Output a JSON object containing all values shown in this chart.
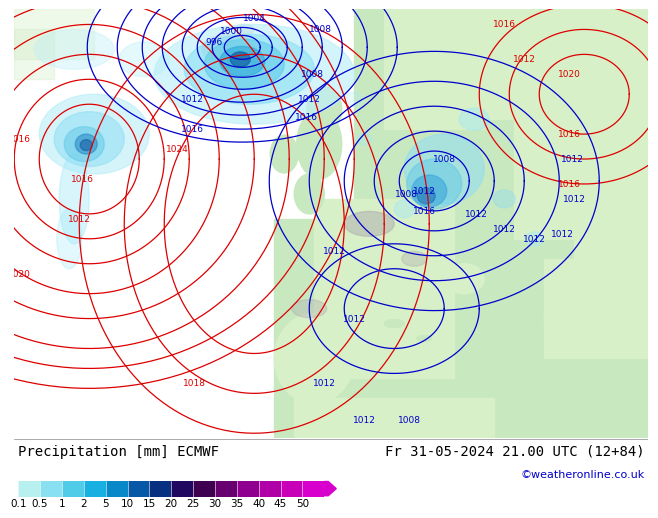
{
  "title_left": "Precipitation [mm] ECMWF",
  "title_right": "Fr 31-05-2024 21.00 UTC (12+84)",
  "credit": "©weatheronline.co.uk",
  "colorbar_levels": [
    "0.1",
    "0.5",
    "1",
    "2",
    "5",
    "10",
    "15",
    "20",
    "25",
    "30",
    "35",
    "40",
    "45",
    "50"
  ],
  "colorbar_colors": [
    "#b8f0f0",
    "#88e0f0",
    "#50cce8",
    "#18b0e0",
    "#0888c8",
    "#0858a8",
    "#083080",
    "#200860",
    "#400050",
    "#680070",
    "#900090",
    "#b000a8",
    "#c800b8",
    "#d800cc"
  ],
  "bg_color": "#ffffff",
  "sea_color": "#e8e8e8",
  "land_color": "#c8e8c0",
  "land_color2": "#d8f0c8",
  "mountain_color": "#b0b0b0",
  "precip_light": "#a0e8f8",
  "precip_mid": "#60c8e8",
  "precip_dark": "#1888c0",
  "text_color": "#000000",
  "credit_color": "#0000cc",
  "title_fontsize": 10,
  "credit_fontsize": 8,
  "tick_fontsize": 7.5,
  "isobar_lw": 0.9
}
